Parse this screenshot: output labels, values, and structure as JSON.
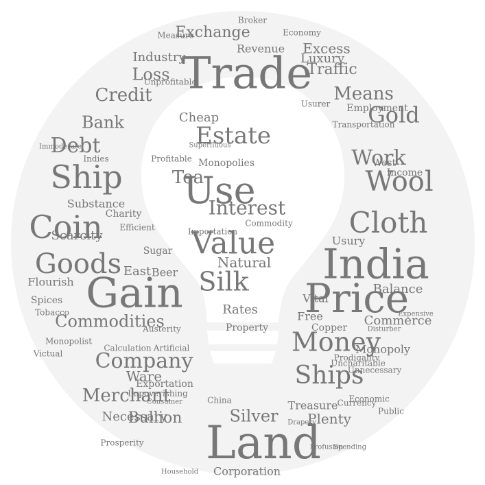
{
  "cloud": {
    "ring_color": "#f3f3f3",
    "bulb_color": "#ffffff",
    "text_color": "#777777",
    "words": [
      "Trade",
      "Land",
      "Price",
      "India",
      "Gain",
      "Use",
      "Coin",
      "Ship",
      "Goods",
      "Money",
      "Cloth",
      "Wool",
      "Value",
      "Ships",
      "Silk",
      "Company",
      "Merchant",
      "Interest",
      "Estate",
      "Gold",
      "Work",
      "Debt",
      "Credit",
      "Bank",
      "Means",
      "Loss",
      "Exchange",
      "Commodities",
      "Silver",
      "Tea",
      "Traffic",
      "Excess",
      "Revenue",
      "Industry",
      "Bullion",
      "Rates",
      "Natural",
      "Property",
      "Plenty",
      "Treasure",
      "Commerce",
      "Monopoly",
      "Necessary",
      "Ware",
      "Balance",
      "Free",
      "Usury",
      "Substance",
      "Charity",
      "Scarcity",
      "Flourish",
      "Spices",
      "Tobacco",
      "Cheap",
      "East",
      "West",
      "Beer",
      "Sugar",
      "Luxury",
      "Employment",
      "Income",
      "Vital",
      "Copper",
      "Corporation",
      "Economy",
      "Broker",
      "Monopolies",
      "Importation",
      "Exportation",
      "Consumer",
      "Calculation",
      "Artificial",
      "Victual",
      "Prodigality",
      "Unnecessary",
      "Transportation",
      "Expensive",
      "Public",
      "Austerity",
      "China",
      "Indies",
      "Superfluous",
      "Commodity",
      "Profitable",
      "Usurer",
      "Efficient",
      "Disturber",
      "Impoverishing",
      "Profusion",
      "Spending",
      "Household",
      "Drapery",
      "Immoderate",
      "Monopolist",
      "Unprofitable",
      "Uncharitable",
      "Economic",
      "Currency",
      "Measure",
      "Prosperity"
    ]
  }
}
